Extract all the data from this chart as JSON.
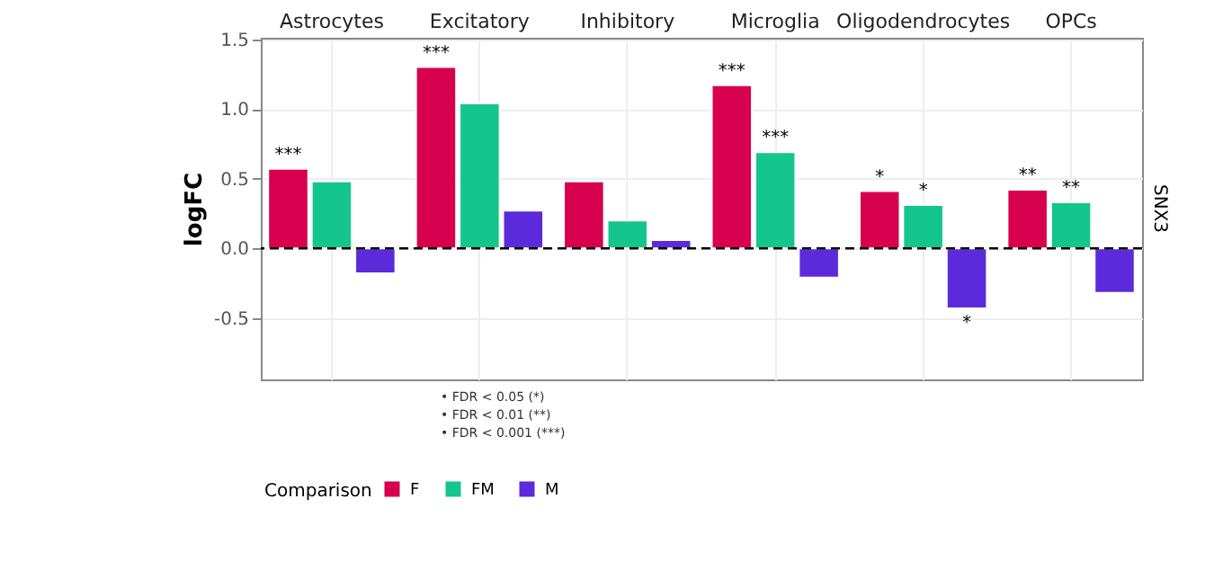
{
  "chart_data": {
    "type": "bar",
    "ylabel": "logFC",
    "y2label": "SNX3",
    "categories": [
      "Astrocytes",
      "Excitatory",
      "Inhibitory",
      "Microglia",
      "Oligodendrocytes",
      "OPCs"
    ],
    "ylim": [
      -0.94,
      1.51
    ],
    "yticks": [
      -0.5,
      {
        "value": 0,
        "label": "0.0"
      },
      0.5,
      {
        "value": 1,
        "label": "1.0"
      },
      1.5
    ],
    "grid": true,
    "legend": "bottom",
    "legend_title": "Comparison",
    "series": [
      {
        "name": "F",
        "color": "#d6004f",
        "values": [
          0.57,
          1.3,
          0.48,
          1.17,
          0.41,
          0.42
        ],
        "value_labels": [
          "***",
          "***",
          null,
          "***",
          "*",
          "**"
        ]
      },
      {
        "name": "FM",
        "color": "#14c68c",
        "values": [
          0.48,
          1.04,
          0.2,
          0.69,
          0.31,
          0.33
        ],
        "value_labels": [
          null,
          null,
          null,
          "***",
          "*",
          "**"
        ]
      },
      {
        "name": "M",
        "color": "#5b2bdb",
        "values": [
          -0.18,
          0.27,
          0.06,
          -0.21,
          -0.43,
          -0.32
        ],
        "value_labels": [
          null,
          null,
          null,
          null,
          "*",
          null
        ]
      }
    ],
    "ref_lines": [
      {
        "axis": "y",
        "value": 0,
        "color": "#000000",
        "line_style": "dashed"
      }
    ],
    "annotations": [
      "• FDR < 0.05 (*)",
      "• FDR < 0.01 (**)",
      "• FDR < 0.001 (***)"
    ]
  }
}
